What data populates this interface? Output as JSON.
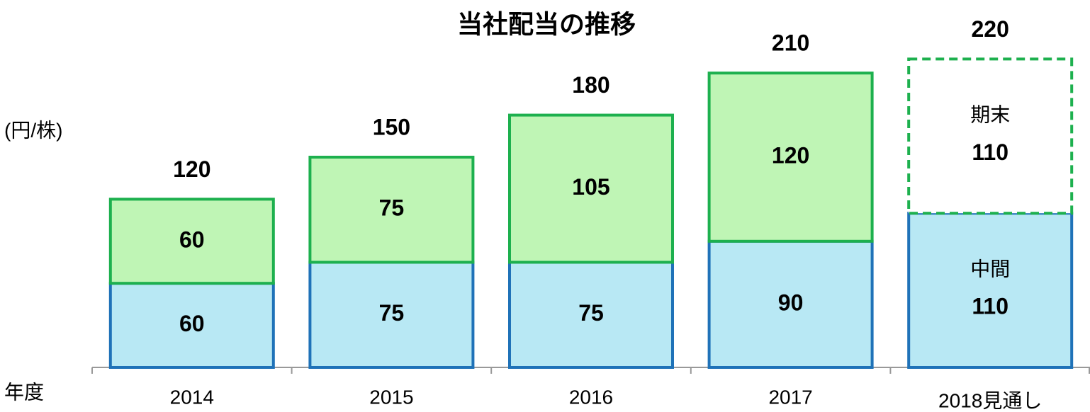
{
  "chart_data": {
    "type": "stacked_bar",
    "title": "当社配当の推移",
    "y_label": "(円/株)",
    "x_label": "年度",
    "categories": [
      "2014",
      "2015",
      "2016",
      "2017",
      "2018見通し"
    ],
    "series": [
      {
        "name": "中間",
        "color": "#b8e8f4",
        "values": [
          60,
          75,
          75,
          90,
          110
        ]
      },
      {
        "name": "期末",
        "color": "#bff5b5",
        "values": [
          60,
          75,
          105,
          120,
          110
        ]
      }
    ],
    "totals": [
      120,
      150,
      180,
      210,
      220
    ],
    "ylim": [
      0,
      250
    ]
  }
}
